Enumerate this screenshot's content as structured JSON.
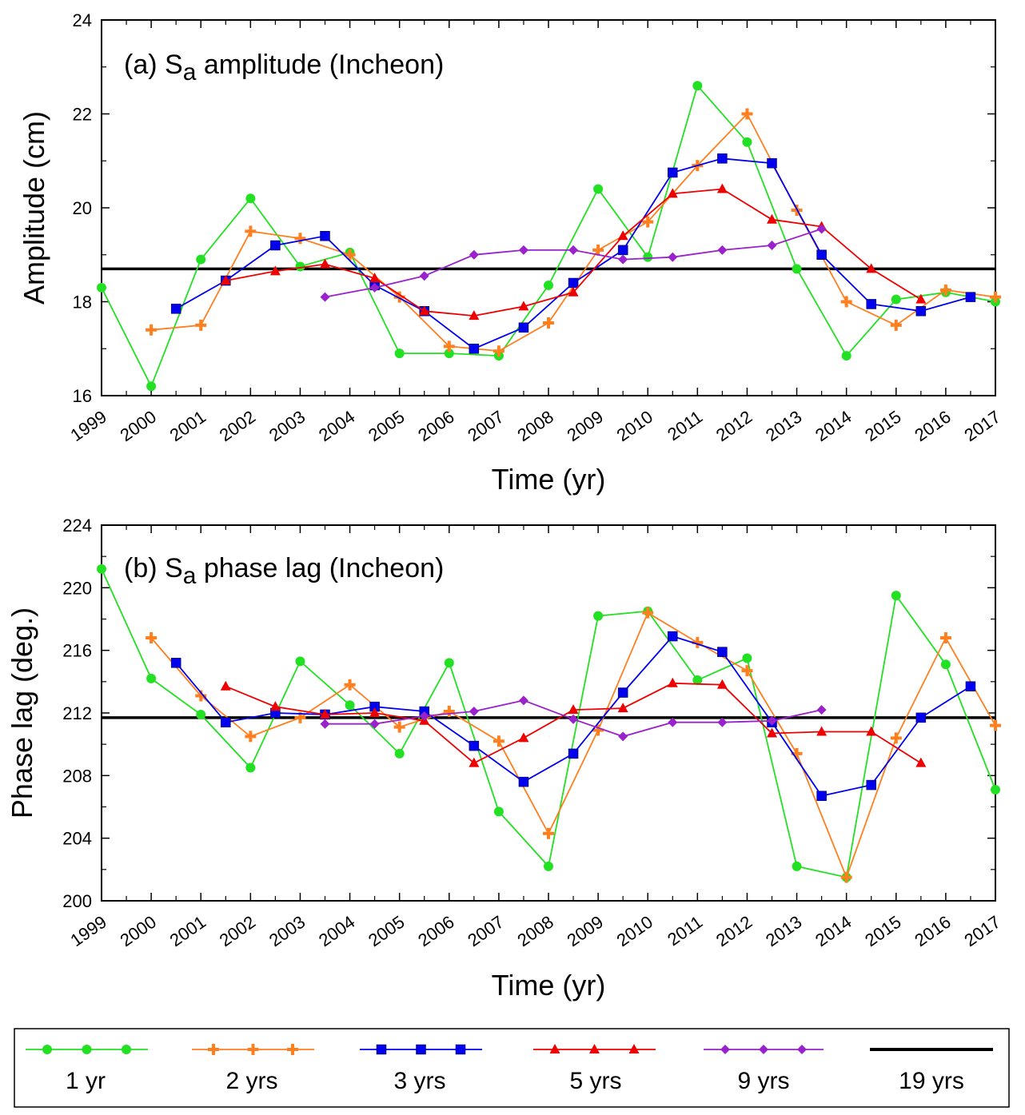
{
  "chart_data": [
    {
      "type": "line",
      "panel": "a",
      "title_prefix": "(a) S",
      "title_subscript": "a",
      "title_suffix": " amplitude (Incheon)",
      "xlabel": "Time (yr)",
      "ylabel": "Amplitude (cm)",
      "xlim": [
        1999,
        2017
      ],
      "ylim": [
        16,
        24
      ],
      "yticks": [
        16,
        18,
        20,
        22,
        24
      ],
      "xticks": [
        1999,
        2000,
        2001,
        2002,
        2003,
        2004,
        2005,
        2006,
        2007,
        2008,
        2009,
        2010,
        2011,
        2012,
        2013,
        2014,
        2015,
        2016,
        2017
      ],
      "reference_line": {
        "name": "19 yrs",
        "value": 18.7
      },
      "series": [
        {
          "name": "1 yr",
          "x": [
            1999,
            2000,
            2001,
            2002,
            2003,
            2004,
            2005,
            2006,
            2007,
            2008,
            2009,
            2010,
            2011,
            2012,
            2013,
            2014,
            2015,
            2016,
            2017
          ],
          "values": [
            18.3,
            16.2,
            18.9,
            20.2,
            18.75,
            19.05,
            16.9,
            16.9,
            16.85,
            18.35,
            20.4,
            18.95,
            22.6,
            21.4,
            18.7,
            16.85,
            18.05,
            18.2,
            18.0
          ]
        },
        {
          "name": "2 yrs",
          "x": [
            2000,
            2001,
            2002,
            2003,
            2004,
            2005,
            2006,
            2007,
            2008,
            2009,
            2010,
            2011,
            2012,
            2013,
            2014,
            2015,
            2016,
            2017
          ],
          "values": [
            17.4,
            17.5,
            19.5,
            19.35,
            19.0,
            18.1,
            17.05,
            16.95,
            17.55,
            19.1,
            19.7,
            20.9,
            22.0,
            19.95,
            18.0,
            17.5,
            18.25,
            18.1
          ]
        },
        {
          "name": "3 yrs",
          "x": [
            2000.5,
            2001.5,
            2002.5,
            2003.5,
            2004.5,
            2005.5,
            2006.5,
            2007.5,
            2008.5,
            2009.5,
            2010.5,
            2011.5,
            2012.5,
            2013.5,
            2014.5,
            2015.5,
            2016.5
          ],
          "values": [
            17.85,
            18.45,
            19.2,
            19.4,
            18.35,
            17.8,
            17.0,
            17.45,
            18.4,
            19.1,
            20.75,
            21.05,
            20.95,
            19.0,
            17.95,
            17.8,
            18.1
          ]
        },
        {
          "name": "5 yrs",
          "x": [
            2001.5,
            2002.5,
            2003.5,
            2004.5,
            2005.5,
            2006.5,
            2007.5,
            2008.5,
            2009.5,
            2010.5,
            2011.5,
            2012.5,
            2013.5,
            2014.5,
            2015.5
          ],
          "values": [
            18.45,
            18.65,
            18.8,
            18.5,
            17.8,
            17.7,
            17.9,
            18.2,
            19.4,
            20.3,
            20.4,
            19.75,
            19.6,
            18.7,
            18.05
          ]
        },
        {
          "name": "9 yrs",
          "x": [
            2003.5,
            2004.5,
            2005.5,
            2006.5,
            2007.5,
            2008.5,
            2009.5,
            2010.5,
            2011.5,
            2012.5,
            2013.5
          ],
          "values": [
            18.1,
            18.3,
            18.55,
            19.0,
            19.1,
            19.1,
            18.9,
            18.95,
            19.1,
            19.2,
            19.55
          ]
        }
      ]
    },
    {
      "type": "line",
      "panel": "b",
      "title_prefix": "(b) S",
      "title_subscript": "a",
      "title_suffix": " phase lag (Incheon)",
      "xlabel": "Time (yr)",
      "ylabel": "Phase lag (deg.)",
      "xlim": [
        1999,
        2017
      ],
      "ylim": [
        200,
        224
      ],
      "yticks": [
        200,
        204,
        208,
        212,
        216,
        220,
        224
      ],
      "xticks": [
        1999,
        2000,
        2001,
        2002,
        2003,
        2004,
        2005,
        2006,
        2007,
        2008,
        2009,
        2010,
        2011,
        2012,
        2013,
        2014,
        2015,
        2016,
        2017
      ],
      "reference_line": {
        "name": "19 yrs",
        "value": 211.7
      },
      "series": [
        {
          "name": "1 yr",
          "x": [
            1999,
            2000,
            2001,
            2002,
            2003,
            2004,
            2005,
            2006,
            2007,
            2008,
            2009,
            2010,
            2011,
            2012,
            2013,
            2014,
            2015,
            2016,
            2017
          ],
          "values": [
            221.2,
            214.2,
            211.9,
            208.5,
            215.3,
            212.5,
            209.4,
            215.2,
            205.7,
            202.2,
            218.2,
            218.5,
            214.1,
            215.5,
            202.2,
            201.5,
            219.5,
            215.1,
            207.1
          ]
        },
        {
          "name": "2 yrs",
          "x": [
            2000,
            2001,
            2002,
            2003,
            2004,
            2005,
            2006,
            2007,
            2008,
            2009,
            2010,
            2011,
            2012,
            2013,
            2014,
            2015,
            2016,
            2017
          ],
          "values": [
            216.8,
            213.1,
            210.5,
            211.7,
            213.8,
            211.1,
            212.1,
            210.2,
            204.3,
            210.9,
            218.4,
            216.5,
            214.7,
            209.4,
            201.5,
            210.4,
            216.8,
            211.2
          ]
        },
        {
          "name": "3 yrs",
          "x": [
            2000.5,
            2001.5,
            2002.5,
            2003.5,
            2004.5,
            2005.5,
            2006.5,
            2007.5,
            2008.5,
            2009.5,
            2010.5,
            2011.5,
            2012.5,
            2013.5,
            2014.5,
            2015.5,
            2016.5
          ],
          "values": [
            215.2,
            211.4,
            212.0,
            211.9,
            212.4,
            212.1,
            209.9,
            207.6,
            209.4,
            213.3,
            216.9,
            215.9,
            211.4,
            206.7,
            207.4,
            211.7,
            213.7
          ]
        },
        {
          "name": "5 yrs",
          "x": [
            2001.5,
            2002.5,
            2003.5,
            2004.5,
            2005.5,
            2006.5,
            2007.5,
            2008.5,
            2009.5,
            2010.5,
            2011.5,
            2012.5,
            2013.5,
            2014.5,
            2015.5
          ],
          "values": [
            213.7,
            212.4,
            211.9,
            212.0,
            211.5,
            208.8,
            210.4,
            212.2,
            212.3,
            213.9,
            213.8,
            210.7,
            210.8,
            210.8,
            208.8
          ]
        },
        {
          "name": "9 yrs",
          "x": [
            2003.5,
            2004.5,
            2005.5,
            2006.5,
            2007.5,
            2008.5,
            2009.5,
            2010.5,
            2011.5,
            2012.5,
            2013.5
          ],
          "values": [
            211.3,
            211.3,
            211.8,
            212.1,
            212.8,
            211.6,
            210.5,
            211.4,
            211.4,
            211.5,
            212.2
          ]
        }
      ]
    }
  ],
  "legend": [
    {
      "name": "1 yr",
      "label": "1 yr",
      "marker": "circle",
      "color": "#22e022"
    },
    {
      "name": "2 yrs",
      "label": "2 yrs",
      "marker": "plus",
      "color": "#ff7f1f"
    },
    {
      "name": "3 yrs",
      "label": "3 yrs",
      "marker": "square",
      "color": "#0000ee"
    },
    {
      "name": "5 yrs",
      "label": "5 yrs",
      "marker": "triangle",
      "color": "#ee0000"
    },
    {
      "name": "9 yrs",
      "label": "9 yrs",
      "marker": "diamond",
      "color": "#9922cc"
    },
    {
      "name": "19 yrs",
      "label": "19 yrs",
      "marker": "line",
      "color": "#000000"
    }
  ]
}
